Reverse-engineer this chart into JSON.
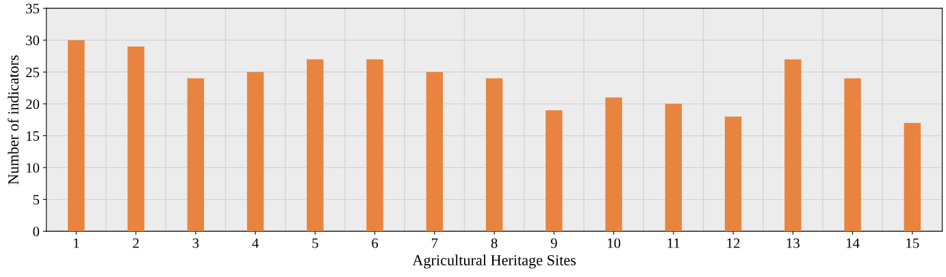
{
  "chart_data": {
    "type": "bar",
    "xlabel": "Agricultural Heritage Sites",
    "ylabel": "Number of indicators",
    "categories": [
      "1",
      "2",
      "3",
      "4",
      "5",
      "6",
      "7",
      "8",
      "9",
      "10",
      "11",
      "12",
      "13",
      "14",
      "15"
    ],
    "values": [
      30,
      29,
      24,
      25,
      27,
      27,
      25,
      24,
      19,
      21,
      20,
      18,
      27,
      24,
      17
    ],
    "color": "#e8843f",
    "ylim": [
      0,
      35
    ],
    "yticks": [
      0,
      5,
      10,
      15,
      20,
      25,
      30,
      35
    ],
    "grid": true
  }
}
